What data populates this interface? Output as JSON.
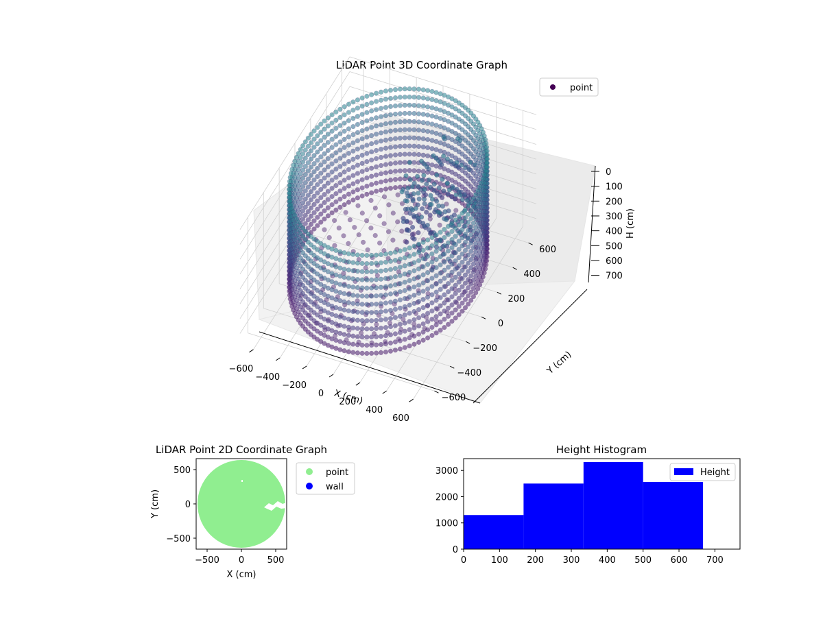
{
  "chart_data": [
    {
      "type": "scatter",
      "title": "LiDAR Point 3D Coordinate Graph",
      "xlabel": "X (cm)",
      "ylabel": "Y (cm)",
      "zlabel": "H (cm)",
      "xticks": [
        -600,
        -400,
        -200,
        0,
        200,
        400,
        600
      ],
      "yticks": [
        -600,
        -400,
        -200,
        0,
        200,
        400,
        600
      ],
      "zticks": [
        0,
        100,
        200,
        300,
        400,
        500,
        600,
        700
      ],
      "xlim": [
        -700,
        700
      ],
      "ylim": [
        -700,
        700
      ],
      "zlim": [
        780,
        0
      ],
      "grid": true,
      "legend": {
        "entries": [
          "point"
        ],
        "placement": "top-right"
      },
      "series": [
        {
          "name": "point",
          "shape": "cylinder of points around the origin",
          "radius": 640,
          "height_range": [
            0,
            670
          ],
          "colormap": "viridis",
          "color": "#440154"
        }
      ]
    },
    {
      "type": "scatter",
      "title": "LiDAR Point 2D Coordinate Graph",
      "xlabel": "X (cm)",
      "ylabel": "Y (cm)",
      "xticks": [
        -500,
        0,
        500
      ],
      "yticks": [
        -500,
        0,
        500
      ],
      "xlim": [
        -660,
        660
      ],
      "ylim": [
        -660,
        660
      ],
      "legend": {
        "entries": [
          "point",
          "wall"
        ],
        "placement": "outside-right"
      },
      "series": [
        {
          "name": "point",
          "color": "#90ee90",
          "radius": 640
        },
        {
          "name": "wall",
          "color": "#0000ff"
        }
      ]
    },
    {
      "type": "bar",
      "title": "Height Histogram",
      "xticks": [
        0,
        100,
        200,
        300,
        400,
        500,
        600,
        700
      ],
      "yticks": [
        0,
        1000,
        2000,
        3000
      ],
      "xlim": [
        0,
        770
      ],
      "ylim": [
        0,
        3450
      ],
      "legend": {
        "entries": [
          "Height"
        ],
        "placement": "top-right"
      },
      "bins": [
        {
          "start": 0,
          "end": 167,
          "count": 1300
        },
        {
          "start": 167,
          "end": 334,
          "count": 2500
        },
        {
          "start": 334,
          "end": 500,
          "count": 3320
        },
        {
          "start": 500,
          "end": 667,
          "count": 2560
        }
      ],
      "series": [
        {
          "name": "Height",
          "color": "#0000ff"
        }
      ]
    }
  ]
}
